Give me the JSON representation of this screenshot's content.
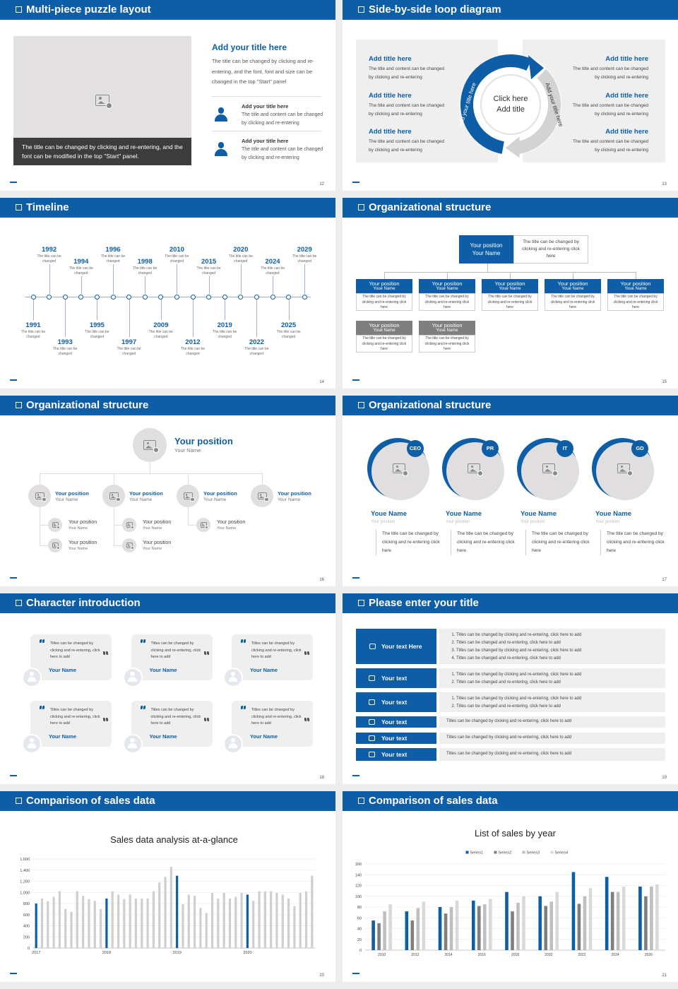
{
  "slides": [
    {
      "title": "Multi-piece puzzle layout",
      "page": "12",
      "caption": "The title can be changed by clicking and re-entering, and the font can be modified in the top \"Start\" panel.",
      "heading": "Add your title here",
      "body": "The title can be changed by clicking and re-entering, and the font, font and size can be changed in the top \"Start\" panel",
      "items": [
        {
          "title": "Add your title here",
          "text": "The title and content can be changed by clicking and re-entering"
        },
        {
          "title": "Add your title here",
          "text": "The title and content can be changed by clicking and re-entering"
        }
      ]
    },
    {
      "title": "Side-by-side loop diagram",
      "page": "13",
      "center": [
        "Click here",
        "Add title"
      ],
      "arc_labels": [
        "Add your title here",
        "Add your title here"
      ],
      "left": [
        {
          "title": "Add title here",
          "text": "The title and content can be changed by clicking and re-entering"
        },
        {
          "title": "Add title here",
          "text": "The title and content can be changed by clicking and re-entering"
        },
        {
          "title": "Add title here",
          "text": "The title and content can be changed by clicking and re-entering"
        }
      ],
      "right": [
        {
          "title": "Add title here",
          "text": "The title and content can be changed by clicking and re-entering"
        },
        {
          "title": "Add title here",
          "text": "The title and content can be changed by clicking and re-entering"
        },
        {
          "title": "Add title here",
          "text": "The title and content can be changed by clicking and re-entering"
        }
      ]
    },
    {
      "title": "Timeline",
      "page": "14",
      "events": [
        {
          "year": "1991",
          "text": "The title can be changed"
        },
        {
          "year": "1992",
          "text": "The title can be changed"
        },
        {
          "year": "1993",
          "text": "The title can be changed"
        },
        {
          "year": "1994",
          "text": "The title can be changed"
        },
        {
          "year": "1995",
          "text": "The title can be changed"
        },
        {
          "year": "1996",
          "text": "The title can be changed"
        },
        {
          "year": "1997",
          "text": "The title can be changed"
        },
        {
          "year": "1998",
          "text": "The title can be changed"
        },
        {
          "year": "2009",
          "text": "The title can be changed"
        },
        {
          "year": "2010",
          "text": "The title can be changed"
        },
        {
          "year": "2012",
          "text": "The title can be changed"
        },
        {
          "year": "2015",
          "text": "The title can be changed"
        },
        {
          "year": "2019",
          "text": "The title can be changed"
        },
        {
          "year": "2020",
          "text": "The title can be changed"
        },
        {
          "year": "2022",
          "text": "The title can be changed"
        },
        {
          "year": "2024",
          "text": "The title can be changed"
        },
        {
          "year": "2025",
          "text": "The title can be changed"
        },
        {
          "year": "2029",
          "text": "The title can be changed"
        }
      ]
    },
    {
      "title": "Organizational structure",
      "page": "15",
      "top": {
        "position": "Your position",
        "name": "Your Name",
        "text": "The title can be changed by clicking and re-entering click here"
      },
      "boxes": [
        {
          "position": "Your position",
          "name": "Youe Name",
          "text": "The title can be changed by clicking and re-entering click here"
        },
        {
          "position": "Your position",
          "name": "Youe Name",
          "text": "The title can be changed by clicking and re-entering click here"
        },
        {
          "position": "Your position",
          "name": "Youe Name",
          "text": "The title can be changed by clicking and re-entering click here"
        },
        {
          "position": "Your position",
          "name": "Youe Name",
          "text": "The title can be changed by clicking and re-entering click here"
        },
        {
          "position": "Your position",
          "name": "Youe Name",
          "text": "The title can be changed by clicking and re-entering click here"
        },
        {
          "position": "Your position",
          "name": "Youe Name",
          "text": "The title can be changed by clicking and re-entering click here"
        },
        {
          "position": "Your position",
          "name": "Youe Name",
          "text": "The title can be changed by clicking and re-entering click here"
        }
      ]
    },
    {
      "title": "Organizational structure",
      "page": "16",
      "top": {
        "position": "Your position",
        "name": "Your Name"
      },
      "members": [
        {
          "position": "Your position",
          "name": "Your Name",
          "subs": [
            {
              "position": "Your position",
              "name": "Your Name"
            },
            {
              "position": "Your position",
              "name": "Your Name"
            }
          ]
        },
        {
          "position": "Your position",
          "name": "Your Name",
          "subs": [
            {
              "position": "Your position",
              "name": "Your Name"
            },
            {
              "position": "Your position",
              "name": "Your Name"
            }
          ]
        },
        {
          "position": "Your position",
          "name": "Your Name",
          "subs": [
            {
              "position": "Your position",
              "name": "Your Name"
            }
          ]
        },
        {
          "position": "Your position",
          "name": "Your Name",
          "subs": []
        }
      ]
    },
    {
      "title": "Organizational structure",
      "page": "17",
      "people": [
        {
          "tag": "CEO",
          "name": "Youe Name",
          "position": "Your position",
          "text": "The title can be changed by clicking and re-entering click here"
        },
        {
          "tag": "PR",
          "name": "Youe Name",
          "position": "Your position",
          "text": "The title can be changed by clicking and re-entering click here"
        },
        {
          "tag": "IT",
          "name": "Youe Name",
          "position": "Your position",
          "text": "The title can be changed by clicking and re-entering click here"
        },
        {
          "tag": "GD",
          "name": "Youe Name",
          "position": "Your position",
          "text": "The title can be changed by clicking and re-entering click here"
        }
      ]
    },
    {
      "title": "Character introduction",
      "page": "18",
      "cards": [
        {
          "quote": "Titles can be changed by clicking and re-entering, click here to add",
          "name": "Your Name"
        },
        {
          "quote": "Titles can be changed by clicking and re-entering, click here to add",
          "name": "Your Name"
        },
        {
          "quote": "Titles can be changed by clicking and re-entering, click here to add",
          "name": "Your Name"
        },
        {
          "quote": "Titles can be changed by clicking and re-entering, click here to add",
          "name": "Your Name"
        },
        {
          "quote": "Titles can be changed by clicking and re-entering, click here to add",
          "name": "Your Name"
        },
        {
          "quote": "Titles can be changed by clicking and re-entering, click here to add",
          "name": "Your Name"
        }
      ]
    },
    {
      "title": "Please enter your title",
      "page": "19",
      "rows": [
        {
          "label": "Your text Here",
          "items": [
            "Titles can be changed by clicking and re-entering, click here to add",
            "Titles can be changed and re-entering, click here to add",
            "Titles can be changed by clicking and re-entering, click here to add",
            "Titles can be changed and re-entering, click here to add"
          ]
        },
        {
          "label": "Your text",
          "items": [
            "Titles can be changed by clicking and re-entering, click here to add",
            "Titles can be changed and re-entering, click here to add"
          ]
        },
        {
          "label": "Your text",
          "items": [
            "Titles can be changed by clicking and re-entering, click here to add",
            "Titles can be changed and re-entering, click here to add"
          ]
        },
        {
          "label": "Your text",
          "text": "Titles can be changed by clicking and re-entering, click here to add"
        },
        {
          "label": "Your text",
          "text": "Titles can be changed by clicking and re-entering, click here to add"
        },
        {
          "label": "Your text",
          "text": "Titles can be changed by clicking and re-entering, click here to add"
        }
      ]
    },
    {
      "title": "Comparison of sales data",
      "page": "20"
    },
    {
      "title": "Comparison of sales data",
      "page": "21"
    }
  ],
  "chart_data": [
    {
      "type": "bar",
      "title": "Sales data analysis at-a-glance",
      "categories": [
        "2017",
        null,
        null,
        null,
        null,
        null,
        null,
        null,
        null,
        null,
        null,
        null,
        "2018",
        null,
        null,
        null,
        null,
        null,
        null,
        null,
        null,
        null,
        null,
        null,
        "2019",
        null,
        null,
        null,
        null,
        null,
        null,
        null,
        null,
        null,
        null,
        null,
        "2020",
        null,
        null,
        null,
        null,
        null,
        null,
        null,
        null,
        null,
        null,
        null
      ],
      "values": [
        800,
        890,
        840,
        920,
        1020,
        700,
        650,
        1020,
        940,
        880,
        850,
        700,
        890,
        1020,
        960,
        880,
        960,
        890,
        890,
        890,
        1020,
        1180,
        1280,
        1460,
        1300,
        790,
        960,
        940,
        720,
        630,
        990,
        890,
        990,
        890,
        920,
        990,
        960,
        850,
        1020,
        1020,
        1020,
        990,
        960,
        890,
        750,
        990,
        1020,
        1300
      ],
      "color": "#cfcfcf",
      "highlight_color": "#0d5ea6",
      "ylim": [
        0,
        1600
      ],
      "yticks": [
        0,
        200,
        400,
        600,
        800,
        {
          "value": 1000,
          "label": "1,000"
        },
        {
          "value": 1200,
          "label": "1,200"
        },
        {
          "value": 1400,
          "label": "1,400"
        },
        {
          "value": 1600,
          "label": "1,600"
        }
      ],
      "grid": true
    },
    {
      "type": "grouped-bar",
      "title": "List of sales by year",
      "categories": [
        "2010",
        "2012",
        "2014",
        "2016",
        "2018",
        "2020",
        "2022",
        "2024",
        "2026"
      ],
      "series": [
        {
          "name": "Series1",
          "color": "#0d5ea6",
          "values": [
            55,
            72,
            80,
            92,
            108,
            100,
            145,
            136,
            118
          ]
        },
        {
          "name": "Series2",
          "color": "#7f7f7f",
          "values": [
            50,
            55,
            68,
            82,
            72,
            82,
            86,
            108,
            100
          ]
        },
        {
          "name": "Series3",
          "color": "#bfbfbf",
          "values": [
            72,
            78,
            80,
            85,
            88,
            90,
            100,
            108,
            118
          ]
        },
        {
          "name": "Series4",
          "color": "#d9d9d9",
          "values": [
            85,
            90,
            92,
            95,
            100,
            108,
            115,
            118,
            122
          ]
        }
      ],
      "ylim": [
        0,
        160
      ],
      "yticks": [
        0,
        20,
        40,
        60,
        80,
        100,
        120,
        140,
        160
      ],
      "grid": true,
      "legend": "top"
    }
  ]
}
